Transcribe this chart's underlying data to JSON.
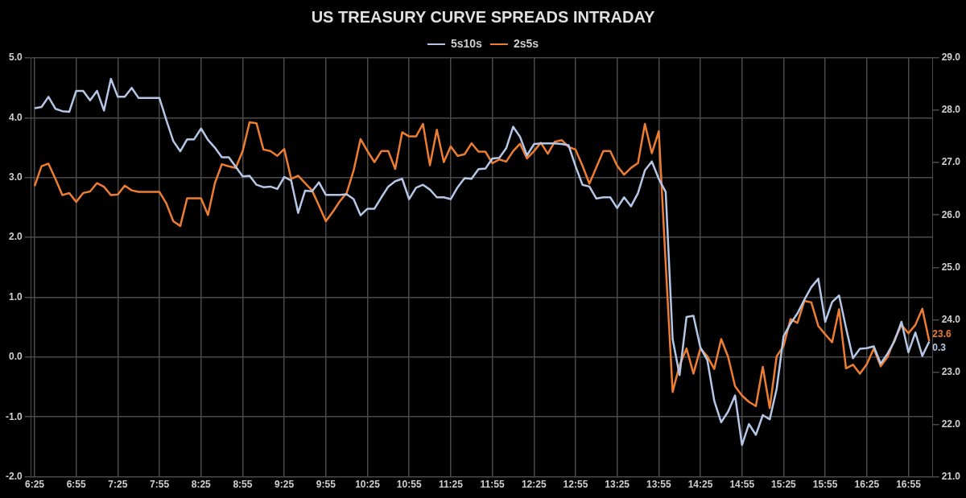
{
  "chart_data": {
    "type": "line",
    "title": "US TREASURY CURVE SPREADS INTRADAY",
    "categories": [
      "6:25",
      null,
      null,
      null,
      null,
      null,
      "6:55",
      null,
      null,
      null,
      null,
      null,
      "7:25",
      null,
      null,
      null,
      null,
      null,
      "7:55",
      null,
      null,
      null,
      null,
      null,
      "8:25",
      null,
      null,
      null,
      null,
      null,
      "8:55",
      null,
      null,
      null,
      null,
      null,
      "9:25",
      null,
      null,
      null,
      null,
      null,
      "9:55",
      null,
      null,
      null,
      null,
      null,
      "10:25",
      null,
      null,
      null,
      null,
      null,
      "10:55",
      null,
      null,
      null,
      null,
      null,
      "11:25",
      null,
      null,
      null,
      null,
      null,
      "11:55",
      null,
      null,
      null,
      null,
      null,
      "12:25",
      null,
      null,
      null,
      null,
      null,
      "12:55",
      null,
      null,
      null,
      null,
      null,
      "13:25",
      null,
      null,
      null,
      null,
      null,
      "13:55",
      null,
      null,
      null,
      null,
      null,
      "14:25",
      null,
      null,
      null,
      null,
      null,
      "14:55",
      null,
      null,
      null,
      null,
      null,
      "15:25",
      null,
      null,
      null,
      null,
      null,
      "15:55",
      null,
      null,
      null,
      null,
      null,
      "16:25",
      null,
      null,
      null,
      null,
      null,
      "16:55",
      null,
      null,
      null
    ],
    "series": [
      {
        "name": "5s10s",
        "color": "#b4c7e7",
        "axis": "y",
        "values": [
          4.16,
          4.18,
          4.35,
          4.15,
          4.11,
          4.1,
          4.45,
          4.45,
          4.29,
          4.45,
          4.12,
          4.65,
          4.35,
          4.35,
          4.5,
          4.33,
          4.33,
          4.33,
          4.33,
          3.96,
          3.61,
          3.44,
          3.64,
          3.64,
          3.82,
          3.63,
          3.5,
          3.34,
          3.34,
          3.18,
          3.02,
          3.03,
          2.88,
          2.84,
          2.85,
          2.81,
          3.01,
          2.95,
          2.41,
          2.78,
          2.77,
          2.92,
          2.71,
          2.71,
          2.71,
          2.72,
          2.64,
          2.37,
          2.48,
          2.48,
          2.67,
          2.85,
          2.94,
          2.98,
          2.64,
          2.83,
          2.88,
          2.8,
          2.67,
          2.67,
          2.64,
          2.84,
          2.99,
          2.98,
          3.14,
          3.15,
          3.32,
          3.33,
          3.49,
          3.85,
          3.68,
          3.37,
          3.56,
          3.57,
          3.57,
          3.57,
          3.56,
          3.54,
          3.19,
          2.88,
          2.85,
          2.65,
          2.67,
          2.67,
          2.49,
          2.67,
          2.52,
          2.74,
          3.12,
          3.27,
          2.98,
          2.76,
          0.3,
          -0.3,
          0.67,
          0.69,
          0.16,
          -0.05,
          -0.73,
          -1.09,
          -0.91,
          -0.64,
          -1.47,
          -1.12,
          -1.3,
          -0.97,
          -1.04,
          -0.53,
          0.35,
          0.56,
          0.73,
          0.96,
          1.17,
          1.31,
          0.59,
          0.92,
          1.03,
          0.49,
          -0.02,
          0.14,
          0.15,
          0.18,
          -0.11,
          0.06,
          0.27,
          0.59,
          0.08,
          0.41,
          0.02,
          0.26
        ]
      },
      {
        "name": "2s5s",
        "color": "#ed7d31",
        "axis": "y2",
        "values": [
          26.55,
          26.93,
          26.98,
          26.69,
          26.38,
          26.42,
          26.25,
          26.42,
          26.45,
          26.61,
          26.54,
          26.38,
          26.39,
          26.56,
          26.47,
          26.44,
          26.44,
          26.44,
          26.44,
          26.22,
          25.88,
          25.79,
          26.32,
          26.32,
          26.32,
          26,
          26.61,
          26.97,
          26.93,
          26.9,
          27.22,
          27.77,
          27.75,
          27.25,
          27.22,
          27.13,
          27.26,
          26.69,
          26.75,
          26.61,
          26.47,
          26.18,
          25.88,
          26.06,
          26.26,
          26.42,
          26.85,
          27.45,
          27.22,
          27.01,
          27.22,
          27.22,
          26.88,
          27.58,
          27.5,
          27.5,
          27.74,
          26.95,
          27.63,
          27.01,
          27.31,
          27.13,
          27.16,
          27.37,
          27.21,
          27.21,
          26.99,
          27.06,
          27.02,
          27.22,
          27.36,
          27.08,
          27.22,
          27.38,
          27.17,
          27.4,
          27.43,
          27.3,
          27.25,
          26.94,
          26.6,
          26.91,
          27.22,
          27.22,
          26.94,
          26.77,
          26.9,
          26.99,
          27.74,
          27.18,
          27.6,
          25.06,
          22.62,
          23.13,
          23.45,
          22.97,
          23.45,
          23.3,
          23.06,
          23.63,
          23.29,
          22.73,
          22.55,
          22.43,
          22.35,
          23.1,
          22.31,
          23.3,
          23.5,
          24.01,
          23.94,
          24.36,
          24.33,
          23.88,
          23.72,
          23.57,
          24.2,
          23.07,
          23.14,
          22.97,
          23.15,
          23.45,
          23.11,
          23.29,
          23.62,
          23.9,
          23.74,
          23.9,
          24.21,
          23.59
        ]
      }
    ],
    "ylim": [
      -2,
      5
    ],
    "yticks": [
      {
        "value": -2,
        "label": "-2.0"
      },
      {
        "value": -1,
        "label": "-1.0"
      },
      {
        "value": 0,
        "label": "0.0"
      },
      {
        "value": 1,
        "label": "1.0"
      },
      {
        "value": 2,
        "label": "2.0"
      },
      {
        "value": 3,
        "label": "3.0"
      },
      {
        "value": 4,
        "label": "4.0"
      },
      {
        "value": 5,
        "label": "5.0"
      }
    ],
    "y2lim": [
      21,
      29
    ],
    "y2ticks": [
      {
        "value": 21,
        "label": "21.0"
      },
      {
        "value": 22,
        "label": "22.0"
      },
      {
        "value": 23,
        "label": "23.0"
      },
      {
        "value": 24,
        "label": "24.0"
      },
      {
        "value": 25,
        "label": "25.0"
      },
      {
        "value": 26,
        "label": "26.0"
      },
      {
        "value": 27,
        "label": "27.0"
      },
      {
        "value": 28,
        "label": "28.0"
      },
      {
        "value": 29,
        "label": "29.0"
      }
    ],
    "annotations": [
      "0.3",
      "23.6"
    ],
    "grid": true,
    "legend": "top",
    "marker": "none",
    "line_style": "solid"
  }
}
